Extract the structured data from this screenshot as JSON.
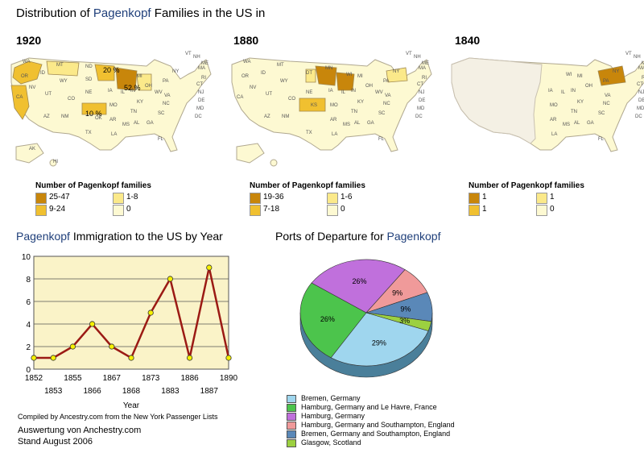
{
  "title": {
    "prefix": "Distribution of ",
    "name": "Pagenkopf",
    "suffix": " Families in the US in"
  },
  "colors": {
    "dark": "#c8860b",
    "mid": "#f0c030",
    "light": "#fbe98a",
    "none": "#fdf9d2",
    "blank": "#f4f0e4",
    "line": "#9b1a14",
    "chart_bg": "#faf3c8",
    "highlight": "#1f3f7a"
  },
  "maps": [
    {
      "year": "1920",
      "state_labels": [
        {
          "t": "20 %",
          "dark": false
        },
        {
          "t": "52 %",
          "dark": false
        },
        {
          "t": "10 %",
          "dark": false
        },
        {
          "t": "WA"
        },
        {
          "t": "OR"
        },
        {
          "t": "CA"
        },
        {
          "t": "NV"
        },
        {
          "t": "ID"
        },
        {
          "t": "MT"
        },
        {
          "t": "WY"
        },
        {
          "t": "UT"
        },
        {
          "t": "CO"
        },
        {
          "t": "AZ"
        },
        {
          "t": "NM"
        },
        {
          "t": "ND"
        },
        {
          "t": "SD"
        },
        {
          "t": "NE"
        },
        {
          "t": "OK"
        },
        {
          "t": "TX"
        },
        {
          "t": "IA"
        },
        {
          "t": "MO"
        },
        {
          "t": "AR"
        },
        {
          "t": "LA"
        },
        {
          "t": "MS"
        },
        {
          "t": "AL"
        },
        {
          "t": "GA"
        },
        {
          "t": "FL"
        },
        {
          "t": "SC"
        },
        {
          "t": "NC"
        },
        {
          "t": "TN"
        },
        {
          "t": "KY"
        },
        {
          "t": "IL"
        },
        {
          "t": "IN"
        },
        {
          "t": "OH"
        },
        {
          "t": "MI"
        },
        {
          "t": "PA"
        },
        {
          "t": "NY"
        },
        {
          "t": "VA"
        },
        {
          "t": "WV"
        },
        {
          "t": "AK"
        },
        {
          "t": "HI"
        },
        {
          "t": "ME"
        },
        {
          "t": "VT"
        },
        {
          "t": "NH"
        },
        {
          "t": "MA"
        },
        {
          "t": "RI"
        },
        {
          "t": "CT"
        },
        {
          "t": "NJ"
        },
        {
          "t": "DE"
        },
        {
          "t": "MD"
        },
        {
          "t": "DC"
        }
      ],
      "legend": {
        "title": "Number of Pagenkopf families",
        "items": [
          {
            "label": "25-47",
            "level": "dark"
          },
          {
            "label": "1-8",
            "level": "light"
          },
          {
            "label": "9-24",
            "level": "mid"
          },
          {
            "label": "0",
            "level": "none"
          }
        ]
      }
    },
    {
      "year": "1880",
      "state_labels": [
        {
          "t": "WA"
        },
        {
          "t": "OR"
        },
        {
          "t": "CA"
        },
        {
          "t": "NV"
        },
        {
          "t": "ID"
        },
        {
          "t": "MT"
        },
        {
          "t": "WY"
        },
        {
          "t": "UT"
        },
        {
          "t": "CO"
        },
        {
          "t": "AZ"
        },
        {
          "t": "NM"
        },
        {
          "t": "DT"
        },
        {
          "t": "NE"
        },
        {
          "t": "KS"
        },
        {
          "t": "MN"
        },
        {
          "t": "WI"
        },
        {
          "t": "TX"
        },
        {
          "t": "IA"
        },
        {
          "t": "MO"
        },
        {
          "t": "AR"
        },
        {
          "t": "LA"
        },
        {
          "t": "MS"
        },
        {
          "t": "AL"
        },
        {
          "t": "GA"
        },
        {
          "t": "FL"
        },
        {
          "t": "SC"
        },
        {
          "t": "NC"
        },
        {
          "t": "TN"
        },
        {
          "t": "KY"
        },
        {
          "t": "IL"
        },
        {
          "t": "IN"
        },
        {
          "t": "OH"
        },
        {
          "t": "MI"
        },
        {
          "t": "PA"
        },
        {
          "t": "NY"
        },
        {
          "t": "VA"
        },
        {
          "t": "WV"
        },
        {
          "t": "ME"
        },
        {
          "t": "VT"
        },
        {
          "t": "NH"
        },
        {
          "t": "MA"
        },
        {
          "t": "RI"
        },
        {
          "t": "CT"
        },
        {
          "t": "NJ"
        },
        {
          "t": "DE"
        },
        {
          "t": "MD"
        },
        {
          "t": "DC"
        }
      ],
      "legend": {
        "title": "Number of Pagenkopf families",
        "items": [
          {
            "label": "19-36",
            "level": "dark"
          },
          {
            "label": "1-6",
            "level": "light"
          },
          {
            "label": "7-18",
            "level": "mid"
          },
          {
            "label": "0",
            "level": "none"
          }
        ]
      }
    },
    {
      "year": "1840",
      "state_labels": [
        {
          "t": "IA"
        },
        {
          "t": "MO"
        },
        {
          "t": "AR"
        },
        {
          "t": "LA"
        },
        {
          "t": "MS"
        },
        {
          "t": "AL"
        },
        {
          "t": "GA"
        },
        {
          "t": "FL"
        },
        {
          "t": "SC"
        },
        {
          "t": "NC"
        },
        {
          "t": "TN"
        },
        {
          "t": "KY"
        },
        {
          "t": "IL"
        },
        {
          "t": "IN"
        },
        {
          "t": "OH"
        },
        {
          "t": "MI"
        },
        {
          "t": "WI"
        },
        {
          "t": "PA"
        },
        {
          "t": "NY"
        },
        {
          "t": "VA"
        },
        {
          "t": "ME"
        },
        {
          "t": "VT"
        },
        {
          "t": "NH"
        },
        {
          "t": "MA"
        },
        {
          "t": "RI"
        },
        {
          "t": "CT"
        },
        {
          "t": "NJ"
        },
        {
          "t": "DE"
        },
        {
          "t": "MD"
        },
        {
          "t": "DC"
        }
      ],
      "legend": {
        "title": "Number of Pagenkopf families",
        "items": [
          {
            "label": "1",
            "level": "dark"
          },
          {
            "label": "1",
            "level": "light"
          },
          {
            "label": "1",
            "level": "mid"
          },
          {
            "label": "0",
            "level": "none"
          }
        ]
      }
    }
  ],
  "line_title": {
    "name": "Pagenkopf",
    "suffix": " Immigration to the US by Year"
  },
  "pie_title": {
    "prefix": "Ports of Departure for ",
    "name": "Pagenkopf"
  },
  "chart_data": [
    {
      "type": "line",
      "title": "Pagenkopf Immigration to the US by Year",
      "xlabel": "Year",
      "ylabel": "",
      "ylim": [
        0,
        10
      ],
      "yticks": [
        0,
        2,
        4,
        6,
        8,
        10
      ],
      "grid": true,
      "categories": [
        "1852",
        "1853",
        "1855",
        "1866",
        "1867",
        "1868",
        "1873",
        "1883",
        "1886",
        "1887",
        "1890"
      ],
      "values": [
        1,
        1,
        2,
        4,
        2,
        1,
        5,
        8,
        1,
        9,
        1
      ]
    },
    {
      "type": "pie",
      "title": "Ports of Departure for Pagenkopf",
      "slices": [
        {
          "label": "Bremen, Germany",
          "value": 29,
          "color": "#9fd6ee"
        },
        {
          "label": "Hamburg, Germany and Le Havre, France",
          "value": 26,
          "color": "#4cc44c"
        },
        {
          "label": "Hamburg, Germany",
          "value": 26,
          "color": "#c070dc"
        },
        {
          "label": "Hamburg, Germany and Southampton, England",
          "value": 9,
          "color": "#f09a9a"
        },
        {
          "label": "Bremen, Germany and Southampton, England",
          "value": 9,
          "color": "#5a88b8"
        },
        {
          "label": "Glasgow, Scotland",
          "value": 3,
          "color": "#9cd040"
        }
      ],
      "data_labels": [
        "29%",
        "26%",
        "26%",
        "9%",
        "9%",
        "3%"
      ],
      "legend": "bottom"
    }
  ],
  "notes": {
    "compiled": "Compiled by Ancestry.com from the New York Passenger Lists",
    "auswertung": "Auswertung von Anchestry.com",
    "stand": "Stand August 2006"
  }
}
